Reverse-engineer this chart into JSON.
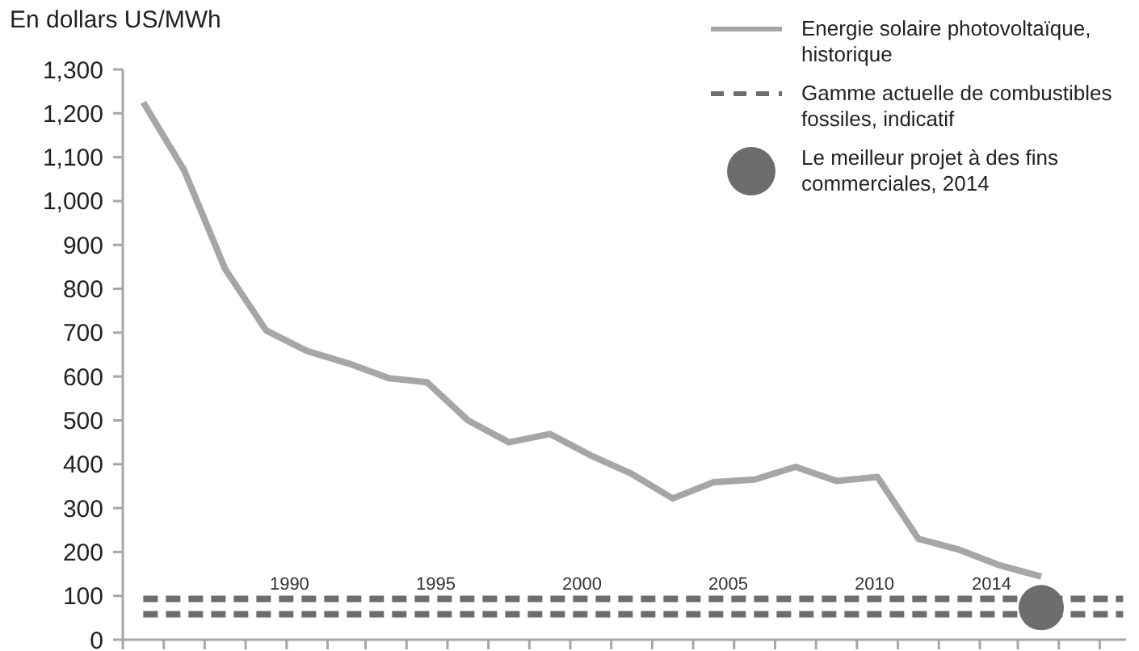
{
  "chart_data": {
    "type": "line",
    "ylabel": "En dollars US/MWh",
    "xlim": [
      1984.3,
      2018.6
    ],
    "xticks": [
      {
        "value": 1984.3,
        "label": null
      },
      {
        "value": 1985.7,
        "label": null
      },
      {
        "value": 1987.1,
        "label": null
      },
      {
        "value": 1988.5,
        "label": null
      },
      {
        "value": 1989.9,
        "label": null
      },
      {
        "value": 1990,
        "label": "1990"
      },
      {
        "value": 1991.3,
        "label": null
      },
      {
        "value": 1992.6,
        "label": null
      },
      {
        "value": 1994,
        "label": null
      },
      {
        "value": 1995,
        "label": "1995"
      },
      {
        "value": 1995.4,
        "label": null
      },
      {
        "value": 1996.8,
        "label": null
      },
      {
        "value": 1998.2,
        "label": null
      },
      {
        "value": 1999.6,
        "label": null
      },
      {
        "value": 2000,
        "label": "2000"
      },
      {
        "value": 2001,
        "label": null
      },
      {
        "value": 2002.4,
        "label": null
      },
      {
        "value": 2003.8,
        "label": null
      },
      {
        "value": 2005,
        "label": "2005"
      },
      {
        "value": 2005.2,
        "label": null
      },
      {
        "value": 2006.6,
        "label": null
      },
      {
        "value": 2008,
        "label": null
      },
      {
        "value": 2009.4,
        "label": null
      },
      {
        "value": 2010,
        "label": "2010"
      },
      {
        "value": 2010.8,
        "label": null
      },
      {
        "value": 2012.2,
        "label": null
      },
      {
        "value": 2013.6,
        "label": null
      },
      {
        "value": 2014,
        "label": "2014"
      },
      {
        "value": 2014.9,
        "label": null
      },
      {
        "value": 2016.3,
        "label": null
      },
      {
        "value": 2017.7,
        "label": null
      }
    ],
    "ylim": [
      0,
      1300
    ],
    "yticks": [
      0,
      100,
      200,
      300,
      400,
      500,
      600,
      700,
      800,
      900,
      {
        "value": 1000,
        "label": "1,000"
      },
      {
        "value": 1100,
        "label": "1,100"
      },
      {
        "value": 1200,
        "label": "1,200"
      },
      {
        "value": 1300,
        "label": "1,300"
      }
    ],
    "grid": false,
    "legend": "top right",
    "series": [
      {
        "name": "Energie solaire photovoltaïque, historique",
        "line_style": "solid",
        "color": "#a6a6a6",
        "x": [
          1985.0,
          1986.4,
          1987.8,
          1989.2,
          1990.6,
          1992.0,
          1993.4,
          1994.7,
          1996.1,
          1997.5,
          1998.9,
          2000.3,
          2001.7,
          2003.1,
          2004.5,
          2005.9,
          2007.3,
          2008.7,
          2010.1,
          2011.5,
          2012.9,
          2014.3,
          2015.7
        ],
        "values": [
          1225,
          1070,
          845,
          705,
          658,
          630,
          596,
          587,
          500,
          450,
          469,
          420,
          378,
          322,
          359,
          365,
          394,
          362,
          371,
          230,
          205,
          169,
          144
        ]
      },
      {
        "name": "Gamme actuelle de combustibles fossiles, indicatif",
        "line_style": "dashed",
        "color": "#6d6d6d",
        "x": [
          1985,
          2018.5
        ],
        "values": [
          93,
          93
        ]
      },
      {
        "line_style": "dashed",
        "color": "#6d6d6d",
        "x": [
          1985,
          2018.5
        ],
        "values": [
          58,
          58
        ]
      },
      {
        "name": "Le meilleur projet à des fins commerciales, 2014",
        "type": "scatter",
        "marker": "circle",
        "color": "#6d6d6d",
        "x": [
          2015.7
        ],
        "values": [
          73
        ]
      }
    ]
  }
}
